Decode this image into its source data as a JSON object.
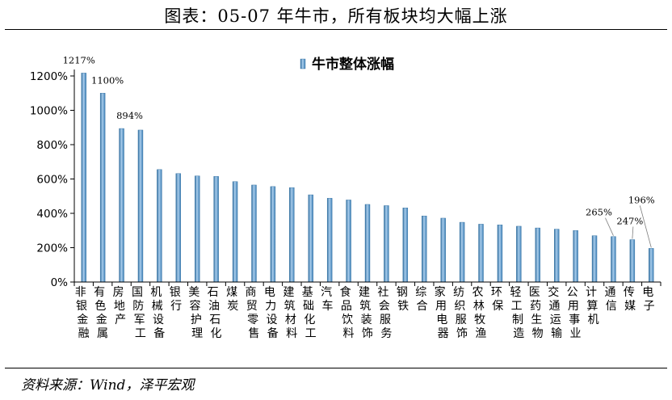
{
  "title": "图表：05-07 年牛市，所有板块均大幅上涨",
  "source": "资料来源：Wind，泽平宏观",
  "chart_data": {
    "type": "bar",
    "legend": {
      "entries": [
        "牛市整体涨幅"
      ],
      "placement": "top-center"
    },
    "ylim": [
      0,
      1200
    ],
    "yticks": [
      0,
      200,
      400,
      600,
      800,
      1000,
      1200
    ],
    "ytick_labels": [
      "0%",
      "200%",
      "400%",
      "600%",
      "800%",
      "1000%",
      "1200%"
    ],
    "grid": false,
    "categories": [
      "非银金融",
      "有色金属",
      "房地产",
      "国防军工",
      "机械设备",
      "银行",
      "美容护理",
      "石油石化",
      "煤炭",
      "商贸零售",
      "电力设备",
      "建筑材料",
      "基础化工",
      "汽车",
      "食品饮料",
      "建筑装饰",
      "社会服务",
      "钢铁",
      "综合",
      "家用电器",
      "纺织服饰",
      "农林牧渔",
      "环保",
      "轻工制造",
      "医药生物",
      "交通运输",
      "公用事业",
      "计算机",
      "通信",
      "传媒",
      "电子"
    ],
    "series": [
      {
        "name": "牛市整体涨幅",
        "values": [
          1217,
          1100,
          894,
          885,
          655,
          632,
          618,
          615,
          585,
          565,
          556,
          550,
          508,
          488,
          478,
          452,
          445,
          432,
          385,
          372,
          348,
          337,
          333,
          325,
          315,
          308,
          300,
          270,
          265,
          247,
          196
        ]
      }
    ],
    "data_labels": [
      {
        "index": 0,
        "text": "1217%"
      },
      {
        "index": 1,
        "text": "1100%"
      },
      {
        "index": 2,
        "text": "894%"
      },
      {
        "index": 28,
        "text": "265%"
      },
      {
        "index": 29,
        "text": "247%"
      },
      {
        "index": 30,
        "text": "196%"
      }
    ],
    "colors": {
      "bar": "#5b9bd5",
      "bar_dark": "#2f6d9e",
      "bar_light": "#b7d6ee",
      "axis": "#000000"
    }
  }
}
